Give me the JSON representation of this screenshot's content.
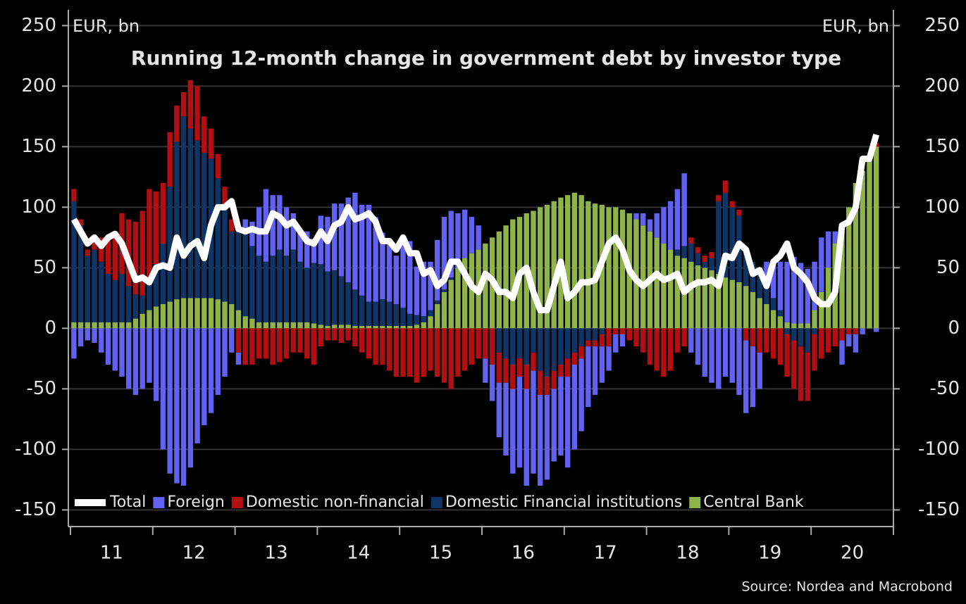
{
  "chart_data": {
    "type": "bar",
    "title": "Running 12-month change in government debt by investor type",
    "unit_left": "EUR, bn",
    "unit_right": "EUR, bn",
    "source": "Source: Nordea and Macrobond",
    "categories": [
      null,
      null,
      null,
      null,
      null,
      null,
      "11",
      null,
      null,
      null,
      null,
      null,
      null,
      null,
      null,
      null,
      null,
      null,
      "12",
      null,
      null,
      null,
      null,
      null,
      null,
      null,
      null,
      null,
      null,
      null,
      "13",
      null,
      null,
      null,
      null,
      null,
      null,
      null,
      null,
      null,
      null,
      null,
      "14",
      null,
      null,
      null,
      null,
      null,
      null,
      null,
      null,
      null,
      null,
      null,
      "15",
      null,
      null,
      null,
      null,
      null,
      null,
      null,
      null,
      null,
      null,
      null,
      "16",
      null,
      null,
      null,
      null,
      null,
      null,
      null,
      null,
      null,
      null,
      null,
      "17",
      null,
      null,
      null,
      null,
      null,
      null,
      null,
      null,
      null,
      null,
      null,
      "18",
      null,
      null,
      null,
      null,
      null,
      null,
      null,
      null,
      null,
      null,
      null,
      "19",
      null,
      null,
      null,
      null,
      null,
      null,
      null,
      null,
      null,
      null,
      null,
      "20",
      null,
      null,
      null
    ],
    "series": [
      {
        "name": "Total",
        "type": "line",
        "color": "#ffffff",
        "values": [
          90,
          80,
          70,
          75,
          68,
          75,
          78,
          70,
          55,
          40,
          42,
          38,
          50,
          52,
          50,
          75,
          60,
          68,
          72,
          58,
          85,
          100,
          100,
          105,
          82,
          80,
          82,
          80,
          80,
          95,
          92,
          85,
          88,
          80,
          72,
          70,
          80,
          72,
          85,
          88,
          100,
          90,
          92,
          95,
          88,
          72,
          72,
          65,
          75,
          62,
          62,
          45,
          48,
          35,
          40,
          55,
          55,
          45,
          35,
          30,
          45,
          40,
          30,
          30,
          25,
          45,
          50,
          30,
          15,
          15,
          35,
          55,
          25,
          30,
          38,
          38,
          40,
          55,
          70,
          75,
          65,
          48,
          40,
          35,
          40,
          45,
          40,
          42,
          45,
          30,
          35,
          38,
          38,
          40,
          35,
          60,
          58,
          70,
          65,
          45,
          48,
          35,
          55,
          60,
          70,
          50,
          45,
          38,
          25,
          20,
          20,
          30,
          85,
          88,
          100,
          140,
          140,
          160
        ]
      },
      {
        "name": "Foreign",
        "type": "bar",
        "color": "#6161f2",
        "values": [
          -25,
          -15,
          -10,
          -12,
          -20,
          -30,
          -35,
          -40,
          -50,
          -55,
          -50,
          -45,
          -60,
          -100,
          -120,
          -128,
          -130,
          -115,
          -95,
          -80,
          -70,
          -55,
          -40,
          -20,
          -10,
          10,
          20,
          40,
          60,
          50,
          45,
          40,
          30,
          25,
          30,
          20,
          40,
          45,
          55,
          60,
          70,
          80,
          75,
          80,
          70,
          55,
          50,
          40,
          55,
          60,
          40,
          45,
          40,
          50,
          60,
          55,
          45,
          40,
          30,
          20,
          -20,
          -30,
          -45,
          -60,
          -70,
          -75,
          -80,
          -85,
          -75,
          -70,
          -60,
          -65,
          -75,
          -70,
          -60,
          -50,
          -40,
          -30,
          -20,
          -15,
          -10,
          0,
          5,
          10,
          10,
          20,
          30,
          40,
          50,
          60,
          -20,
          -30,
          -40,
          -45,
          -50,
          -40,
          -45,
          -55,
          -60,
          -50,
          -30,
          20,
          30,
          40,
          50,
          55,
          50,
          45,
          40,
          45,
          30,
          10,
          -20,
          -10,
          -15,
          -5,
          0,
          -3
        ]
      },
      {
        "name": "Domestic non-financial",
        "type": "bar",
        "color": "#b10f12",
        "values": [
          10,
          5,
          5,
          10,
          20,
          30,
          40,
          50,
          55,
          60,
          70,
          75,
          60,
          50,
          45,
          30,
          20,
          40,
          45,
          30,
          25,
          20,
          15,
          10,
          -20,
          -30,
          -30,
          -25,
          -25,
          -30,
          -28,
          -25,
          -20,
          -20,
          -25,
          -30,
          -15,
          -10,
          -10,
          -12,
          -10,
          -15,
          -20,
          -25,
          -30,
          -30,
          -35,
          -40,
          -40,
          -40,
          -45,
          -40,
          -35,
          -40,
          -45,
          -50,
          -40,
          -35,
          -30,
          -25,
          -25,
          -30,
          -25,
          -20,
          -20,
          -15,
          -20,
          -15,
          -20,
          -15,
          -15,
          -10,
          -15,
          -10,
          -10,
          -5,
          -5,
          -10,
          -15,
          -5,
          -5,
          -10,
          -15,
          -20,
          -30,
          -35,
          -40,
          -35,
          -20,
          -15,
          5,
          5,
          5,
          5,
          5,
          10,
          5,
          5,
          -10,
          -15,
          -20,
          -20,
          -25,
          -30,
          -35,
          -40,
          -45,
          -40,
          -30,
          -25,
          -20,
          -15,
          -10,
          -5,
          -5,
          0,
          0,
          3
        ]
      },
      {
        "name": "Domestic Financial institutions",
        "type": "bar",
        "color": "#0f3465",
        "values": [
          100,
          80,
          55,
          60,
          50,
          40,
          35,
          40,
          30,
          20,
          15,
          25,
          35,
          50,
          95,
          130,
          150,
          140,
          130,
          120,
          115,
          100,
          80,
          60,
          65,
          70,
          60,
          55,
          50,
          55,
          60,
          55,
          60,
          50,
          45,
          50,
          50,
          45,
          45,
          40,
          35,
          30,
          25,
          20,
          20,
          22,
          20,
          18,
          15,
          10,
          8,
          5,
          5,
          3,
          2,
          2,
          0,
          0,
          0,
          0,
          0,
          0,
          -20,
          -25,
          -30,
          -25,
          -30,
          -20,
          -35,
          -40,
          -35,
          -30,
          -25,
          -20,
          -15,
          -10,
          -10,
          -5,
          0,
          0,
          0,
          0,
          0,
          0,
          0,
          0,
          0,
          0,
          5,
          10,
          15,
          10,
          5,
          10,
          60,
          70,
          60,
          55,
          30,
          25,
          20,
          15,
          10,
          5,
          -5,
          -10,
          -15,
          -20,
          -5,
          0,
          0,
          0,
          0,
          0,
          0,
          0,
          0,
          0
        ]
      },
      {
        "name": "Central Bank",
        "type": "bar",
        "color": "#8db34a",
        "values": [
          5,
          5,
          5,
          5,
          5,
          5,
          5,
          5,
          5,
          8,
          12,
          15,
          18,
          20,
          22,
          24,
          25,
          25,
          25,
          25,
          25,
          24,
          22,
          20,
          15,
          10,
          8,
          5,
          5,
          5,
          5,
          5,
          5,
          5,
          5,
          4,
          3,
          2,
          3,
          3,
          3,
          2,
          2,
          2,
          2,
          2,
          2,
          2,
          2,
          2,
          3,
          5,
          10,
          20,
          30,
          40,
          50,
          58,
          62,
          65,
          70,
          75,
          80,
          85,
          90,
          92,
          95,
          97,
          100,
          102,
          105,
          108,
          110,
          112,
          110,
          105,
          103,
          102,
          100,
          100,
          98,
          95,
          90,
          85,
          80,
          75,
          70,
          65,
          60,
          58,
          55,
          52,
          50,
          48,
          45,
          42,
          40,
          38,
          35,
          30,
          25,
          20,
          15,
          10,
          5,
          4,
          4,
          4,
          15,
          30,
          50,
          70,
          80,
          100,
          120,
          130,
          140,
          150
        ]
      }
    ],
    "ylim": [
      -162,
      263
    ],
    "yticks": [
      -150,
      -100,
      -50,
      0,
      50,
      100,
      150,
      200,
      250
    ],
    "y2lim": [
      -162,
      263
    ],
    "y2ticks": [
      -150,
      -100,
      -50,
      0,
      50,
      100,
      150,
      200,
      250
    ],
    "grid": true,
    "legend": "bottom-left"
  }
}
